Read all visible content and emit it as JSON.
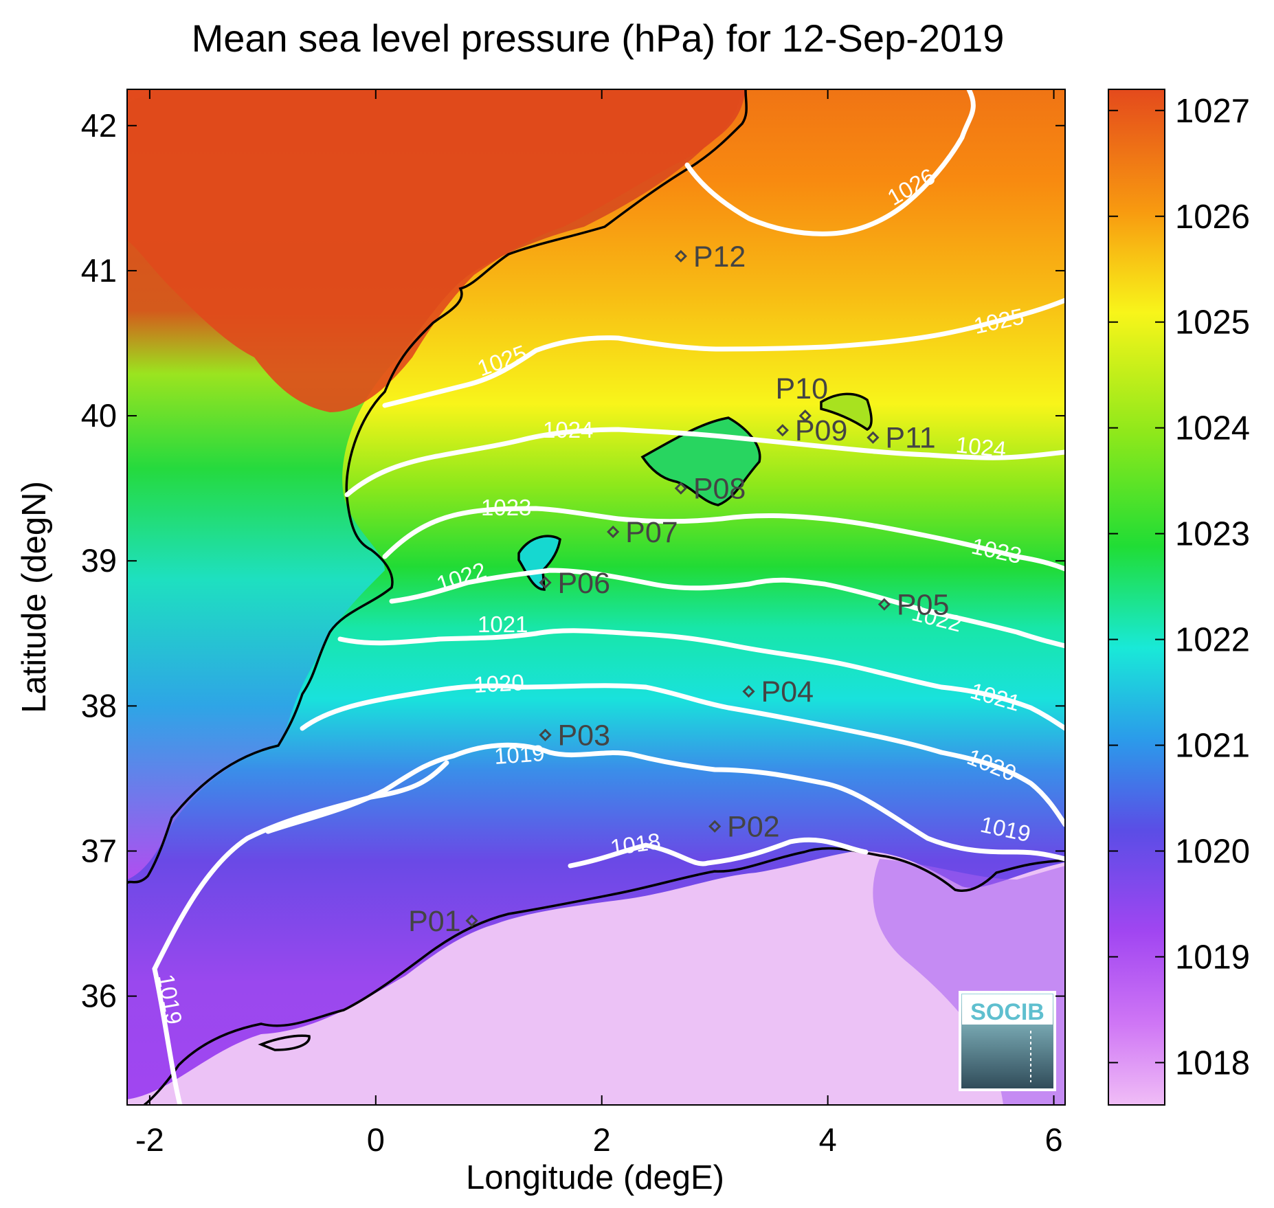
{
  "chart_data": {
    "type": "heatmap",
    "title": "Mean sea level pressure (hPa) for 12-Sep-2019",
    "xlabel": "Longitude (degE)",
    "ylabel": "Latitude (degN)",
    "xlim": [
      -2.2,
      6.1
    ],
    "ylim": [
      35.25,
      42.25
    ],
    "xticks": [
      -2,
      0,
      2,
      4,
      6
    ],
    "yticks": [
      36,
      37,
      38,
      39,
      40,
      41,
      42
    ],
    "colorbar": {
      "range": [
        1017.6,
        1027.2
      ],
      "ticks": [
        1018,
        1019,
        1020,
        1021,
        1022,
        1023,
        1024,
        1025,
        1026,
        1027
      ],
      "colors": [
        "#f0bdf6",
        "#a146f1",
        "#5b4de6",
        "#2b9bea",
        "#19e9d8",
        "#20dd35",
        "#8de81b",
        "#f8f51a",
        "#f89a10",
        "#e44a1c"
      ]
    },
    "contours": [
      {
        "level": 1019,
        "label": "1019"
      },
      {
        "level": 1018,
        "label": "1018"
      },
      {
        "level": 1019,
        "label": "1019"
      },
      {
        "level": 1020,
        "label": "1020"
      },
      {
        "level": 1021,
        "label": "1021"
      },
      {
        "level": 1022,
        "label": "1022"
      },
      {
        "level": 1023,
        "label": "1023"
      },
      {
        "level": 1024,
        "label": "1024"
      },
      {
        "level": 1025,
        "label": "1025"
      },
      {
        "level": 1026,
        "label": "1026"
      }
    ],
    "points": [
      {
        "name": "P01",
        "lon": 0.85,
        "lat": 36.52
      },
      {
        "name": "P02",
        "lon": 3.0,
        "lat": 37.17
      },
      {
        "name": "P03",
        "lon": 1.5,
        "lat": 37.8
      },
      {
        "name": "P04",
        "lon": 3.3,
        "lat": 38.1
      },
      {
        "name": "P05",
        "lon": 4.5,
        "lat": 38.7
      },
      {
        "name": "P06",
        "lon": 1.5,
        "lat": 38.85
      },
      {
        "name": "P07",
        "lon": 2.1,
        "lat": 39.2
      },
      {
        "name": "P08",
        "lon": 2.7,
        "lat": 39.5
      },
      {
        "name": "P09",
        "lon": 3.6,
        "lat": 39.9
      },
      {
        "name": "P10",
        "lon": 3.8,
        "lat": 40.0
      },
      {
        "name": "P11",
        "lon": 4.4,
        "lat": 39.85
      },
      {
        "name": "P12",
        "lon": 2.7,
        "lat": 41.1
      }
    ]
  },
  "logo": {
    "text": "SOCIB",
    "icon": "socib-logo"
  }
}
